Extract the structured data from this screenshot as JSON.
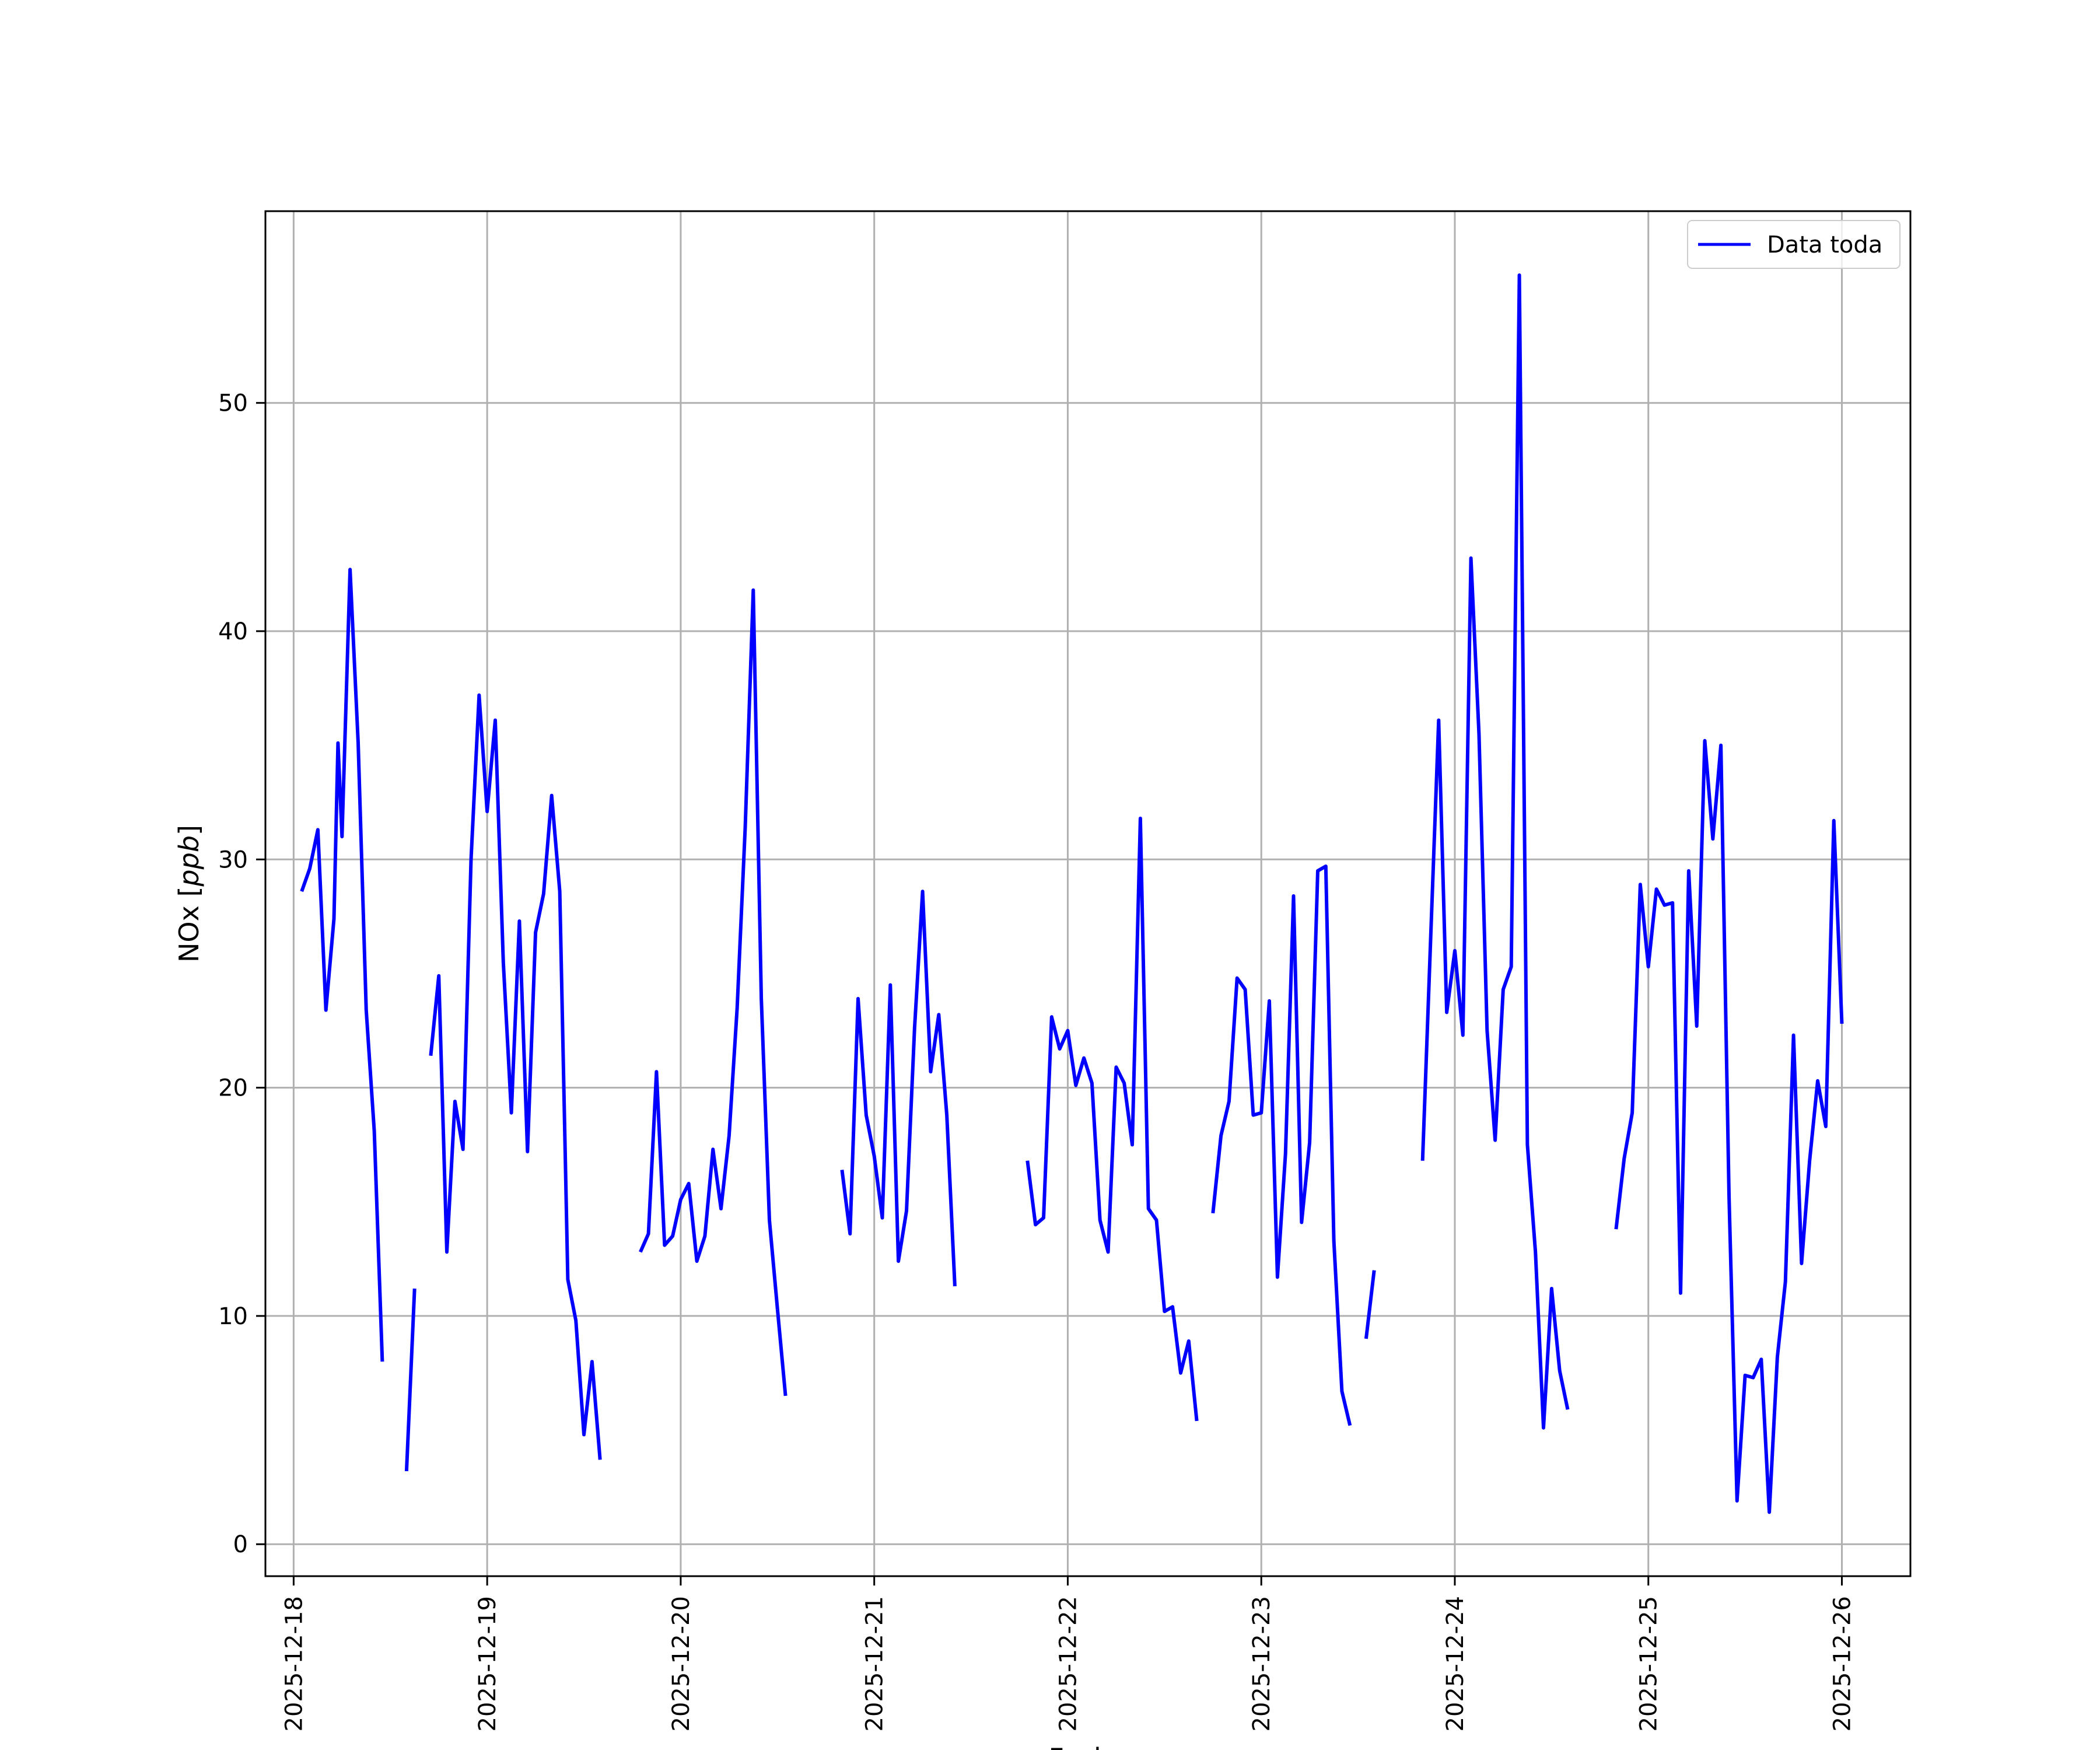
{
  "chart_data": {
    "type": "line",
    "title": "",
    "xlabel": "Fecha",
    "ylabel_prefix": "NOx [",
    "ylabel_unit": "ppb",
    "ylabel_suffix": "]",
    "xlim": [
      "2025-12-17 20:30",
      "2025-12-26 08:30"
    ],
    "ylim": [
      -1.4,
      58.4
    ],
    "grid": true,
    "legend_position": "top-right",
    "x_ticks": [
      "2025-12-18",
      "2025-12-19",
      "2025-12-20",
      "2025-12-21",
      "2025-12-22",
      "2025-12-23",
      "2025-12-24",
      "2025-12-25",
      "2025-12-26"
    ],
    "y_ticks": [
      0,
      10,
      20,
      30,
      40,
      50
    ],
    "colors": {
      "series": "#0000ff",
      "grid": "#b0b0b0",
      "axes": "#000000"
    },
    "series": [
      {
        "name": "Data toda",
        "segments": [
          {
            "x": [
              "2025-12-18 01:00",
              "2025-12-18 02:00",
              "2025-12-18 03:00",
              "2025-12-18 04:00",
              "2025-12-18 05:00",
              "2025-12-18 05:30",
              "2025-12-18 06:00",
              "2025-12-18 07:00",
              "2025-12-18 08:00",
              "2025-12-18 09:00",
              "2025-12-18 10:00",
              "2025-12-18 11:00",
              "2025-12-18 12:00"
            ],
            "y": [
              28.6,
              29.6,
              31.3,
              23.4,
              27.4,
              35.1,
              31.0,
              42.7,
              35.1,
              23.4,
              18.1,
              8.0,
              null
            ]
          },
          {
            "x": [
              "2025-12-18 14:00",
              "2025-12-18 15:00"
            ],
            "y": [
              3.2,
              11.2
            ]
          },
          {
            "x": [
              "2025-12-18 17:00",
              "2025-12-18 18:00",
              "2025-12-18 19:00",
              "2025-12-18 20:00",
              "2025-12-18 21:00",
              "2025-12-18 22:00",
              "2025-12-18 23:00",
              "2025-12-19 00:00",
              "2025-12-19 01:00",
              "2025-12-19 02:00",
              "2025-12-19 03:00",
              "2025-12-19 04:00",
              "2025-12-19 05:00",
              "2025-12-19 06:00",
              "2025-12-19 07:00",
              "2025-12-19 08:00",
              "2025-12-19 09:00",
              "2025-12-19 10:00",
              "2025-12-19 11:00",
              "2025-12-19 12:00",
              "2025-12-19 13:00",
              "2025-12-19 14:00"
            ],
            "y": [
              21.4,
              24.9,
              12.8,
              19.4,
              17.3,
              30.0,
              37.2,
              32.1,
              36.1,
              25.5,
              18.9,
              27.3,
              17.2,
              26.8,
              28.5,
              32.8,
              28.6,
              11.6,
              9.8,
              4.8,
              8.0,
              3.7
            ]
          },
          {
            "x": [
              "2025-12-19 19:00",
              "2025-12-19 20:00",
              "2025-12-19 21:00",
              "2025-12-19 22:00",
              "2025-12-19 23:00",
              "2025-12-20 00:00",
              "2025-12-20 01:00",
              "2025-12-20 02:00",
              "2025-12-20 03:00",
              "2025-12-20 04:00",
              "2025-12-20 05:00",
              "2025-12-20 06:00",
              "2025-12-20 07:00",
              "2025-12-20 08:00",
              "2025-12-20 09:00",
              "2025-12-20 10:00",
              "2025-12-20 11:00",
              "2025-12-20 12:00"
            ],
            "y": [
              12.8,
              13.6,
              20.7,
              13.1,
              13.5,
              15.1,
              15.8,
              12.4,
              13.5,
              17.3,
              14.7,
              17.9,
              23.5,
              31.4,
              41.8,
              23.9,
              14.2,
              10.3
            ]
          },
          {
            "x": [
              "2025-12-20 12:00",
              "2025-12-20 13:00"
            ],
            "y": [
              10.3,
              6.5
            ]
          },
          {
            "x": [
              "2025-12-20 20:00",
              "2025-12-20 21:00",
              "2025-12-20 22:00",
              "2025-12-20 23:00",
              "2025-12-21 00:00",
              "2025-12-21 01:00",
              "2025-12-21 02:00",
              "2025-12-21 03:00",
              "2025-12-21 04:00",
              "2025-12-21 05:00",
              "2025-12-21 06:00",
              "2025-12-21 07:00",
              "2025-12-21 08:00",
              "2025-12-21 09:00",
              "2025-12-21 10:00",
              "2025-12-21 11:00"
            ],
            "y": [
              16.4,
              13.6,
              23.9,
              18.8,
              17.0,
              14.3,
              24.5,
              12.4,
              14.6,
              22.6,
              28.6,
              20.7,
              23.2,
              18.8,
              11.3,
              null
            ]
          },
          {
            "x": [
              "2025-12-21 19:00",
              "2025-12-21 20:00",
              "2025-12-21 21:00",
              "2025-12-21 22:00",
              "2025-12-21 23:00",
              "2025-12-22 00:00",
              "2025-12-22 01:00",
              "2025-12-22 02:00",
              "2025-12-22 03:00",
              "2025-12-22 04:00",
              "2025-12-22 05:00",
              "2025-12-22 06:00",
              "2025-12-22 07:00",
              "2025-12-22 08:00",
              "2025-12-22 09:00",
              "2025-12-22 10:00",
              "2025-12-22 11:00",
              "2025-12-22 12:00",
              "2025-12-22 13:00",
              "2025-12-22 14:00",
              "2025-12-22 15:00",
              "2025-12-22 16:00"
            ],
            "y": [
              16.8,
              14.0,
              14.3,
              23.1,
              21.7,
              22.5,
              20.1,
              21.3,
              20.2,
              14.2,
              12.8,
              20.9,
              20.2,
              17.5,
              31.8,
              14.7,
              14.2,
              10.2,
              10.4,
              7.5,
              8.9,
              5.4
            ]
          },
          {
            "x": [
              "2025-12-22 18:00",
              "2025-12-22 19:00",
              "2025-12-22 20:00",
              "2025-12-22 21:00",
              "2025-12-22 22:00",
              "2025-12-22 23:00",
              "2025-12-23 00:00",
              "2025-12-23 01:00",
              "2025-12-23 02:00",
              "2025-12-23 03:00",
              "2025-12-23 04:00",
              "2025-12-23 05:00",
              "2025-12-23 06:00",
              "2025-12-23 07:00",
              "2025-12-23 08:00",
              "2025-12-23 09:00",
              "2025-12-23 10:00",
              "2025-12-23 11:00"
            ],
            "y": [
              14.5,
              17.9,
              19.4,
              24.8,
              24.3,
              18.8,
              18.9,
              23.8,
              11.7,
              17.1,
              28.4,
              14.1,
              17.6,
              29.5,
              29.7,
              13.3,
              6.7,
              5.2
            ]
          },
          {
            "x": [
              "2025-12-23 13:00",
              "2025-12-23 14:00"
            ],
            "y": [
              9.0,
              12.0
            ]
          },
          {
            "x": [
              "2025-12-23 20:00",
              "2025-12-23 21:00",
              "2025-12-23 22:00",
              "2025-12-23 23:00",
              "2025-12-24 00:00",
              "2025-12-24 01:00",
              "2025-12-24 02:00",
              "2025-12-24 03:00",
              "2025-12-24 04:00",
              "2025-12-24 05:00",
              "2025-12-24 06:00",
              "2025-12-24 07:00",
              "2025-12-24 08:00",
              "2025-12-24 09:00",
              "2025-12-24 10:00",
              "2025-12-24 11:00",
              "2025-12-24 12:00",
              "2025-12-24 13:00",
              "2025-12-24 14:00"
            ],
            "y": [
              16.8,
              26.5,
              36.1,
              23.3,
              26.0,
              22.3,
              43.2,
              35.5,
              22.5,
              17.7,
              24.3,
              25.3,
              55.6,
              17.5,
              12.8,
              5.1,
              11.2,
              7.6,
              5.9
            ]
          },
          {
            "x": [
              "2025-12-24 20:00",
              "2025-12-24 21:00",
              "2025-12-24 22:00",
              "2025-12-24 23:00",
              "2025-12-25 00:00",
              "2025-12-25 01:00",
              "2025-12-25 02:00",
              "2025-12-25 03:00",
              "2025-12-25 04:00",
              "2025-12-25 05:00",
              "2025-12-25 06:00",
              "2025-12-25 07:00",
              "2025-12-25 08:00",
              "2025-12-25 09:00",
              "2025-12-25 10:00",
              "2025-12-25 11:00",
              "2025-12-25 12:00",
              "2025-12-25 13:00",
              "2025-12-25 14:00",
              "2025-12-25 15:00",
              "2025-12-25 16:00",
              "2025-12-25 17:00",
              "2025-12-25 18:00",
              "2025-12-25 19:00",
              "2025-12-25 20:00",
              "2025-12-25 21:00",
              "2025-12-25 22:00",
              "2025-12-25 23:00",
              "2025-12-26 00:00"
            ],
            "y": [
              13.8,
              16.9,
              18.9,
              28.9,
              25.3,
              28.7,
              28.0,
              28.1,
              11.0,
              29.5,
              22.7,
              35.2,
              30.9,
              35.0,
              15.3,
              1.9,
              7.4,
              7.3,
              8.1,
              1.4,
              8.2,
              11.5,
              22.3,
              12.3,
              16.8,
              20.3,
              18.3,
              31.7,
              22.8
            ]
          }
        ]
      }
    ]
  }
}
